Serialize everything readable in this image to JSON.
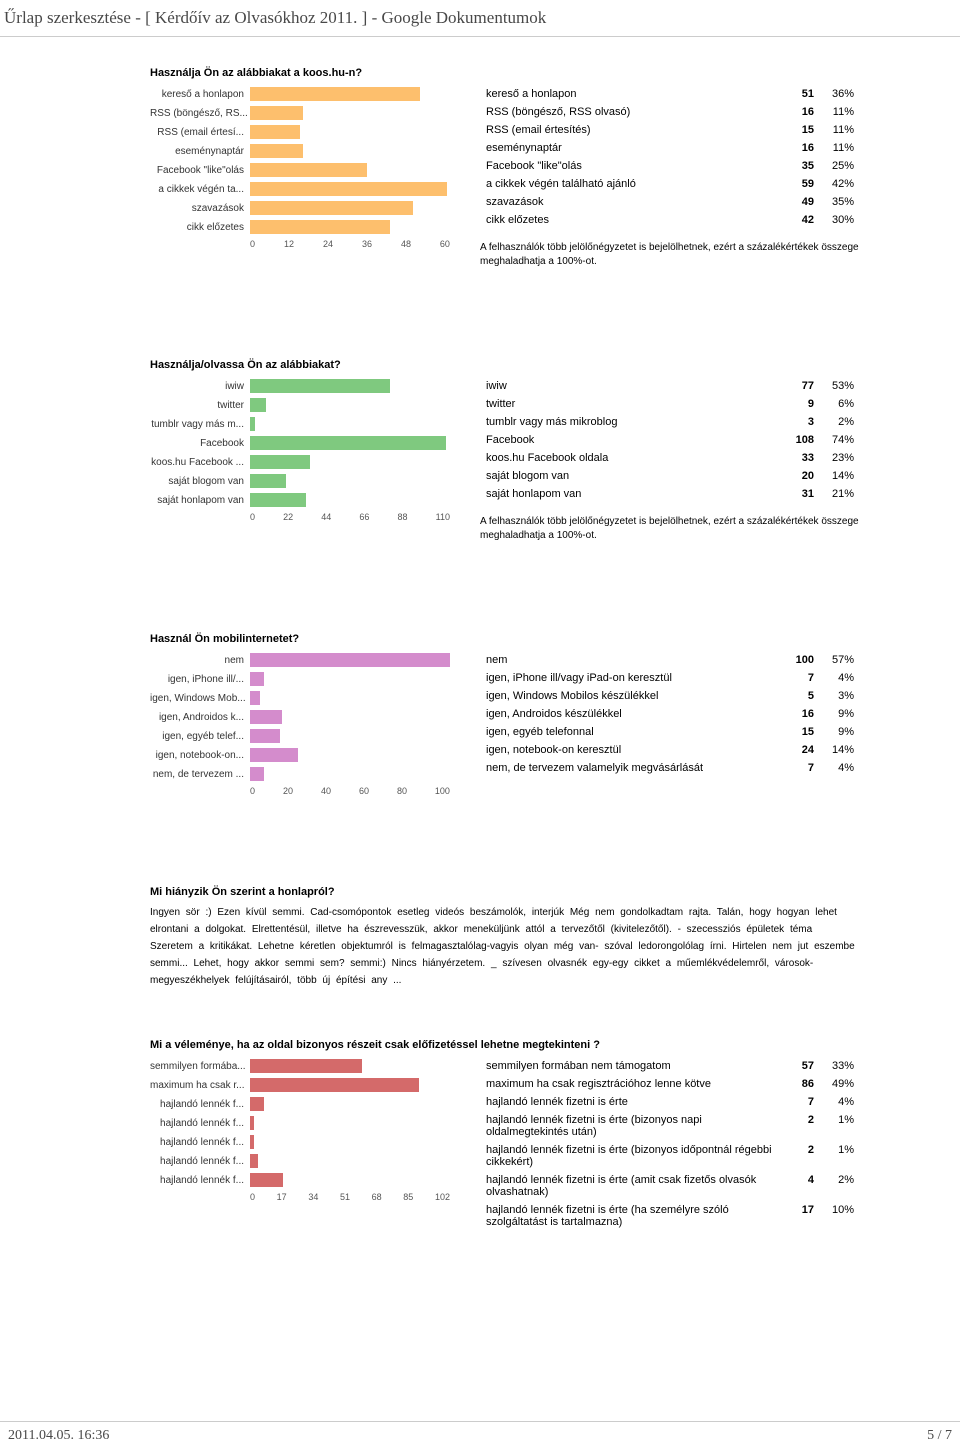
{
  "page_title": "Űrlap szerkesztése - [ Kérdőív az Olvasókhoz 2011. ] - Google Dokumentumok",
  "footer": {
    "date": "2011.04.05. 16:36",
    "page": "5 / 7"
  },
  "checkbox_note": "A felhasználók több jelölőnégyzetet is bejelölhetnek, ezért a százalékértékek összege meghaladhatja a 100%-ot.",
  "q1": {
    "title": "Használja Ön az alábbiakat a koos.hu-n?",
    "bar_color": "#fdbf6d",
    "xmax": 60,
    "ticks": [
      "0",
      "12",
      "24",
      "36",
      "48",
      "60"
    ],
    "rows": [
      {
        "label": "kereső a honlapon",
        "short": "kereső a honlapon",
        "count": 51,
        "pct": "36%"
      },
      {
        "label": "RSS (böngésző, RSS olvasó)",
        "short": "RSS (böngésző, RS...",
        "count": 16,
        "pct": "11%"
      },
      {
        "label": "RSS (email értesítés)",
        "short": "RSS (email értesí...",
        "count": 15,
        "pct": "11%"
      },
      {
        "label": "eseménynaptár",
        "short": "eseménynaptár",
        "count": 16,
        "pct": "11%"
      },
      {
        "label": "Facebook \"like\"olás",
        "short": "Facebook \"like\"olás",
        "count": 35,
        "pct": "25%"
      },
      {
        "label": "a cikkek végén található ajánló",
        "short": "a cikkek végén ta...",
        "count": 59,
        "pct": "42%"
      },
      {
        "label": "szavazások",
        "short": "szavazások",
        "count": 49,
        "pct": "35%"
      },
      {
        "label": "cikk előzetes",
        "short": "cikk előzetes",
        "count": 42,
        "pct": "30%"
      }
    ]
  },
  "q2": {
    "title": "Használja/olvassa Ön az alábbiakat?",
    "bar_color": "#7fc97f",
    "xmax": 110,
    "ticks": [
      "0",
      "22",
      "44",
      "66",
      "88",
      "110"
    ],
    "rows": [
      {
        "label": "iwiw",
        "short": "iwiw",
        "count": 77,
        "pct": "53%"
      },
      {
        "label": "twitter",
        "short": "twitter",
        "count": 9,
        "pct": "6%"
      },
      {
        "label": "tumblr vagy más mikroblog",
        "short": "tumblr vagy más m...",
        "count": 3,
        "pct": "2%"
      },
      {
        "label": "Facebook",
        "short": "Facebook",
        "count": 108,
        "pct": "74%"
      },
      {
        "label": "koos.hu Facebook oldala",
        "short": "koos.hu Facebook ...",
        "count": 33,
        "pct": "23%"
      },
      {
        "label": "saját blogom van",
        "short": "saját blogom van",
        "count": 20,
        "pct": "14%"
      },
      {
        "label": "saját honlapom van",
        "short": "saját honlapom van",
        "count": 31,
        "pct": "21%"
      }
    ]
  },
  "q3": {
    "title": "Használ Ön mobilinternetet?",
    "bar_color": "#d48ccc",
    "xmax": 100,
    "ticks": [
      "0",
      "20",
      "40",
      "60",
      "80",
      "100"
    ],
    "rows": [
      {
        "label": "nem",
        "short": "nem",
        "count": 100,
        "pct": "57%"
      },
      {
        "label": "igen, iPhone ill/vagy iPad-on keresztül",
        "short": "igen, iPhone ill/...",
        "count": 7,
        "pct": "4%"
      },
      {
        "label": "igen, Windows Mobilos készülékkel",
        "short": "igen, Windows Mob...",
        "count": 5,
        "pct": "3%"
      },
      {
        "label": "igen, Androidos készülékkel",
        "short": "igen, Androidos k...",
        "count": 16,
        "pct": "9%"
      },
      {
        "label": "igen, egyéb telefonnal",
        "short": "igen, egyéb telef...",
        "count": 15,
        "pct": "9%"
      },
      {
        "label": "igen, notebook-on keresztül",
        "short": "igen, notebook-on...",
        "count": 24,
        "pct": "14%"
      },
      {
        "label": "nem, de tervezem valamelyik megvásárlását",
        "short": "nem, de tervezem ...",
        "count": 7,
        "pct": "4%"
      }
    ]
  },
  "q4": {
    "title": "Mi hiányzik Ön szerint a honlapról?",
    "text": "Ingyen sör :) Ezen kívül semmi.   Cad-csomópontok   esetleg videós beszámolók, interjúk   Még nem gondolkadtam rajta. Talán, hogy hogyan lehet elrontani a dolgokat. Elrettentésül, illetve ha észrevesszük, akkor meneküljünk attól a tervezőtől (kivitelezőtől).   -   szecessziós épületek téma   Szeretem a kritikákat. Lehetne kéretlen objektumról is felmagasztalólag-vagyis olyan még van- szóval ledorongolólag írni.   Hirtelen nem jut eszembe semmi... Lehet, hogy akkor semmi sem?   semmi:)   Nincs hiányérzetem.   _   szívesen olvasnék egy-egy cikket a műemlékvédelemről, városok-megyeszékhelyek felújításairól, több új építési any   ..."
  },
  "q5": {
    "title": "Mi a véleménye, ha az oldal bizonyos részeit csak előfizetéssel lehetne megtekinteni ?",
    "bar_color": "#d46a6a",
    "xmax": 102,
    "ticks": [
      "0",
      "17",
      "34",
      "51",
      "68",
      "85",
      "102"
    ],
    "rows": [
      {
        "label": "semmilyen formában nem támogatom",
        "short": "semmilyen formába...",
        "count": 57,
        "pct": "33%"
      },
      {
        "label": "maximum ha csak regisztrációhoz lenne kötve",
        "short": "maximum ha csak r...",
        "count": 86,
        "pct": "49%"
      },
      {
        "label": "hajlandó lennék fizetni is érte",
        "short": "hajlandó lennék f...",
        "count": 7,
        "pct": "4%"
      },
      {
        "label": "hajlandó lennék fizetni is érte (bizonyos napi oldalmegtekintés után)",
        "short": "hajlandó lennék f...",
        "count": 2,
        "pct": "1%"
      },
      {
        "label": "hajlandó lennék fizetni is érte (bizonyos időpontnál régebbi cikkekért)",
        "short": "hajlandó lennék f...",
        "count": 2,
        "pct": "1%"
      },
      {
        "label": "hajlandó lennék fizetni is érte (amit csak fizetős olvasók olvashatnak)",
        "short": "hajlandó lennék f...",
        "count": 4,
        "pct": "2%"
      },
      {
        "label": "hajlandó lennék fizetni is érte (ha személyre szóló szolgáltatást is tartalmazna)",
        "short": "hajlandó lennék f...",
        "count": 17,
        "pct": "10%"
      }
    ]
  }
}
